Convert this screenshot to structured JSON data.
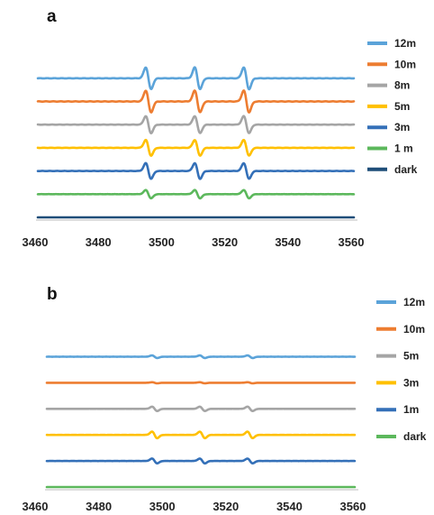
{
  "chart_data": [
    {
      "type": "line",
      "panel_label": "a",
      "title": "",
      "xlabel": "",
      "ylabel": "",
      "xlim": [
        3465,
        3565
      ],
      "x_ticks": [
        3460,
        3480,
        3500,
        3520,
        3540,
        3560
      ],
      "peak_positions": [
        3500,
        3515.5,
        3531
      ],
      "y_axis_visible": false,
      "grid": false,
      "legend_position": "right",
      "series": [
        {
          "name": "12m",
          "color": "#5ba3d9",
          "offset": 6,
          "signal_amplitude": 1.0
        },
        {
          "name": "10m",
          "color": "#ed7d31",
          "offset": 5,
          "signal_amplitude": 1.0
        },
        {
          "name": "8m",
          "color": "#a5a5a5",
          "offset": 4,
          "signal_amplitude": 0.78
        },
        {
          "name": "5m",
          "color": "#ffc000",
          "offset": 3,
          "signal_amplitude": 0.72
        },
        {
          "name": "3m",
          "color": "#3470b8",
          "offset": 2,
          "signal_amplitude": 0.72
        },
        {
          "name": "1 m",
          "color": "#5cb85c",
          "offset": 1,
          "signal_amplitude": 0.38
        },
        {
          "name": "dark",
          "color": "#1f4e79",
          "offset": 0,
          "signal_amplitude": 0.0
        }
      ]
    },
    {
      "type": "line",
      "panel_label": "b",
      "title": "",
      "xlabel": "",
      "ylabel": "",
      "xlim": [
        3465,
        3565
      ],
      "x_ticks": [
        3460,
        3480,
        3500,
        3520,
        3540,
        3560
      ],
      "peak_positions": [
        3500,
        3515.5,
        3531
      ],
      "y_axis_visible": false,
      "grid": false,
      "legend_position": "right",
      "series": [
        {
          "name": "12m",
          "color": "#5ba3d9",
          "offset": 5,
          "signal_amplitude": 0.12
        },
        {
          "name": "10m",
          "color": "#ed7d31",
          "offset": 4,
          "signal_amplitude": 0.05
        },
        {
          "name": "5m",
          "color": "#a5a5a5",
          "offset": 3,
          "signal_amplitude": 0.2
        },
        {
          "name": "3m",
          "color": "#ffc000",
          "offset": 2,
          "signal_amplitude": 0.3
        },
        {
          "name": "1m",
          "color": "#3470b8",
          "offset": 1,
          "signal_amplitude": 0.22
        },
        {
          "name": "dark",
          "color": "#5cb85c",
          "offset": 0,
          "signal_amplitude": 0.0
        }
      ]
    }
  ]
}
